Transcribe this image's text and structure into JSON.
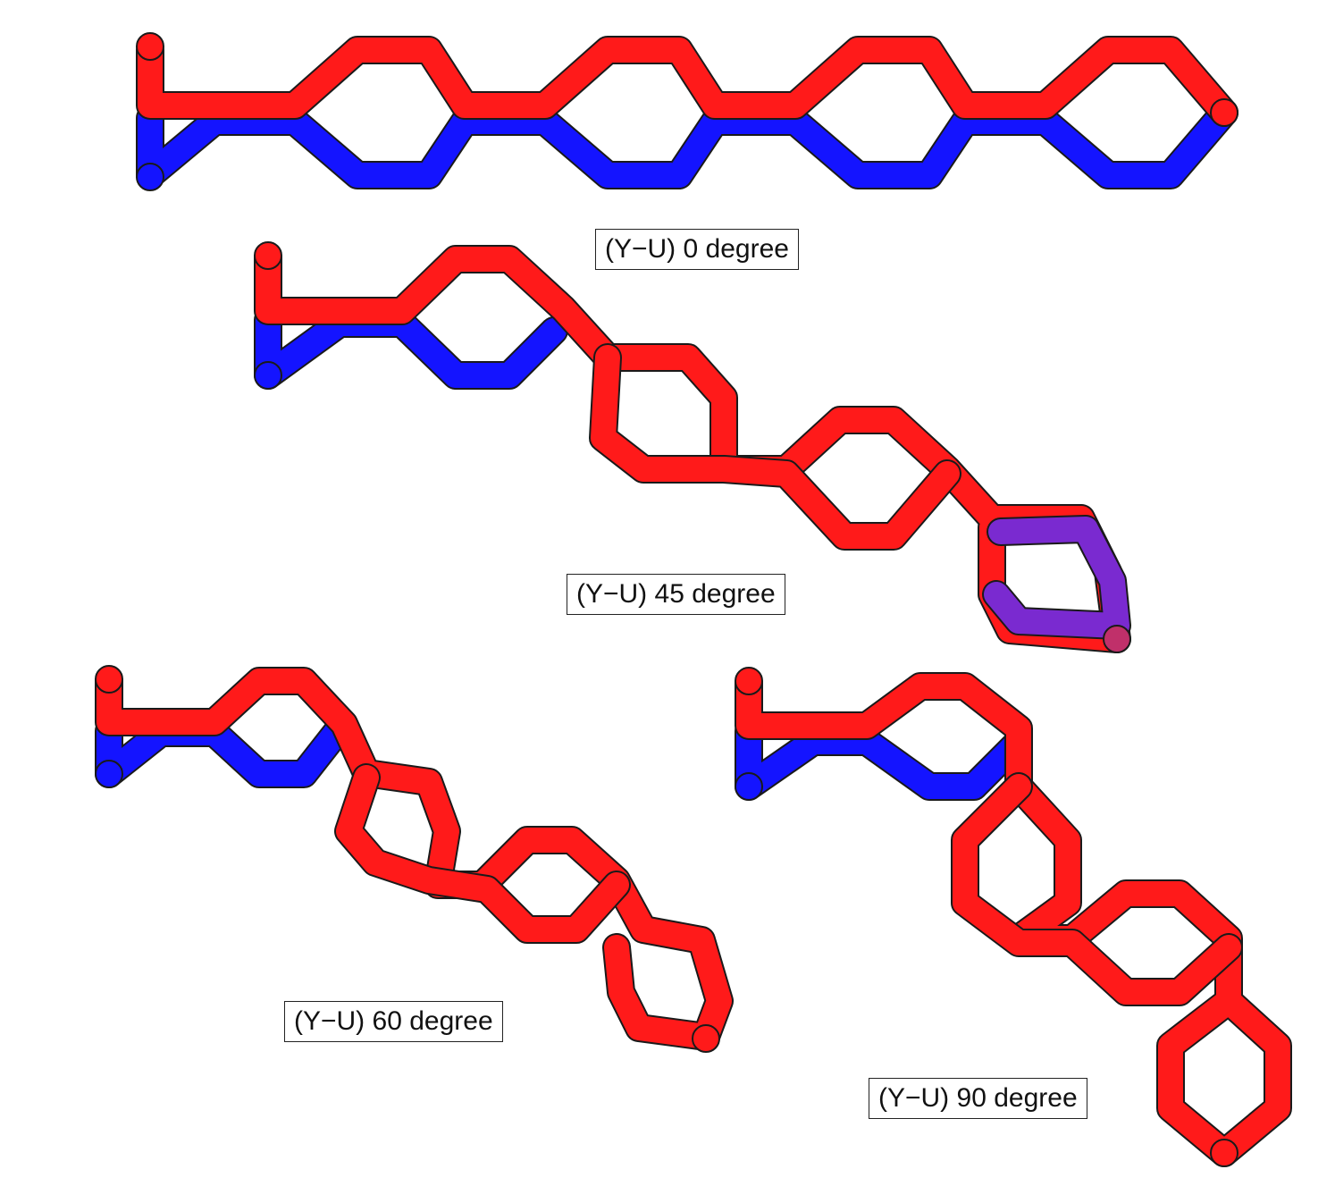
{
  "figure": {
    "colors": {
      "red": "#ff1a1a",
      "blue": "#1414ff",
      "outline": "#1a1a1a",
      "background": "#ffffff"
    },
    "panels": [
      {
        "id": "p0",
        "caption": "(Y−U) 0 degree",
        "angle_deg": 0
      },
      {
        "id": "p45",
        "caption": "(Y−U) 45 degree",
        "angle_deg": 45
      },
      {
        "id": "p60",
        "caption": "(Y−U) 60 degree",
        "angle_deg": 60
      },
      {
        "id": "p90",
        "caption": "(Y−U) 90 degree",
        "angle_deg": 90
      }
    ]
  }
}
